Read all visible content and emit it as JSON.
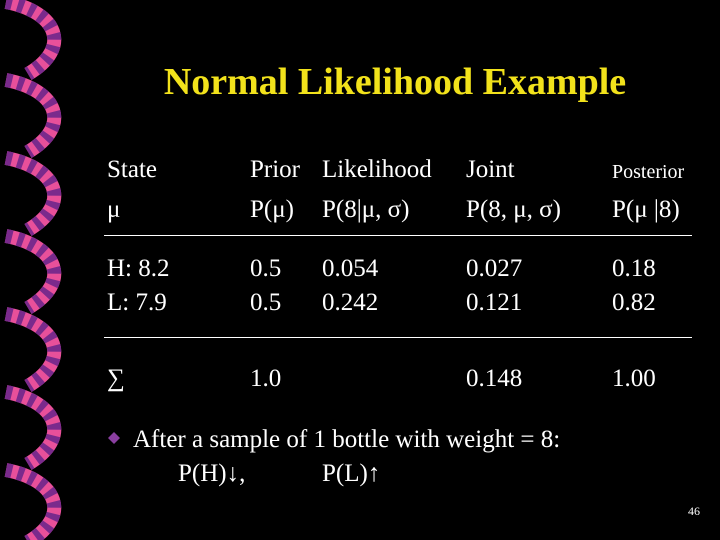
{
  "title": "Normal Likelihood Example",
  "table": {
    "header": [
      [
        "State",
        "Prior",
        "Likelihood",
        "Joint",
        "Posterior"
      ],
      [
        "μ",
        "P(μ)",
        "P(8|μ, σ)",
        "P(8, μ, σ)",
        "P(μ |8)"
      ]
    ],
    "rows": [
      [
        "H: 8.2",
        "0.5",
        "0.054",
        "0.027",
        "0.18"
      ],
      [
        "L: 7.9",
        "0.5",
        "0.242",
        "0.121",
        "0.82"
      ]
    ],
    "sum": {
      "symbol": "∑",
      "prior": "1.0",
      "joint": "0.148",
      "posterior": "1.00"
    }
  },
  "bullet": {
    "text": "After a sample of 1 bottle with weight = 8:",
    "items": [
      "P(H)↓,",
      "P(L)↑"
    ]
  },
  "page_number": "46"
}
